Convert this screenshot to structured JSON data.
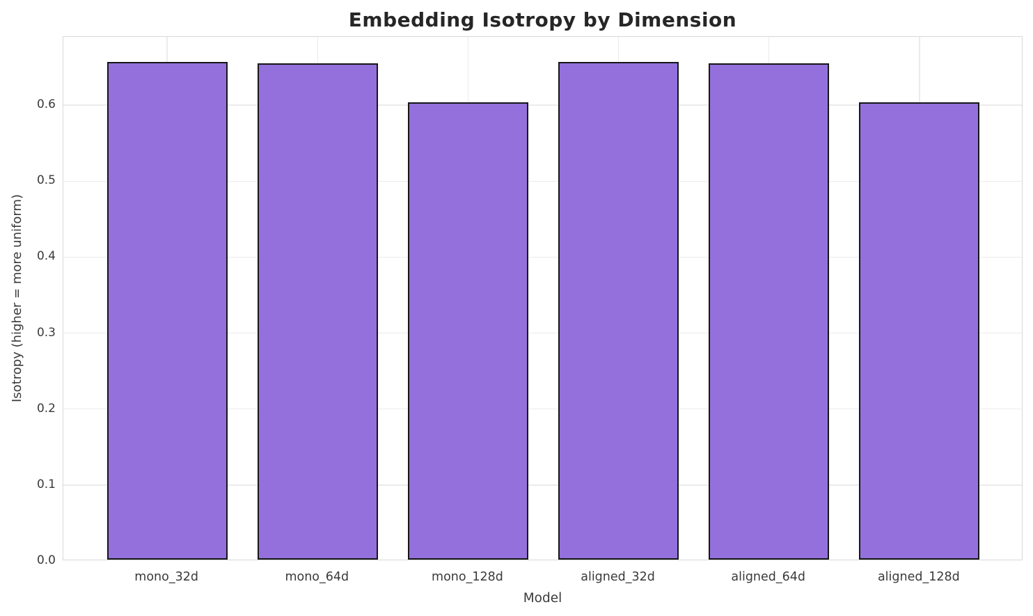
{
  "header": {
    "title": "Embedding Isotropy by Dimension"
  },
  "chart_data": {
    "type": "bar",
    "categories": [
      "mono_32d",
      "mono_64d",
      "mono_128d",
      "aligned_32d",
      "aligned_64d",
      "aligned_128d"
    ],
    "values": [
      0.655,
      0.653,
      0.602,
      0.655,
      0.653,
      0.602
    ],
    "title": "Embedding Isotropy by Dimension",
    "xlabel": "Model",
    "ylabel": "Isotropy (higher = more uniform)",
    "ylim": [
      0,
      0.69
    ],
    "xlim": [
      -0.69,
      5.69
    ],
    "yticks": [
      0.0,
      0.1,
      0.2,
      0.3,
      0.4,
      0.5,
      0.6
    ],
    "bar_width_units": 0.8,
    "grid": true,
    "legend": "none",
    "bar_color": "#9370DB",
    "bar_edge_color": "#161616",
    "grid_color": "#ebebeb",
    "spine_color": "#d8d8d8",
    "title_color": "#262626",
    "axis_text_color": "#3a3a3a"
  }
}
